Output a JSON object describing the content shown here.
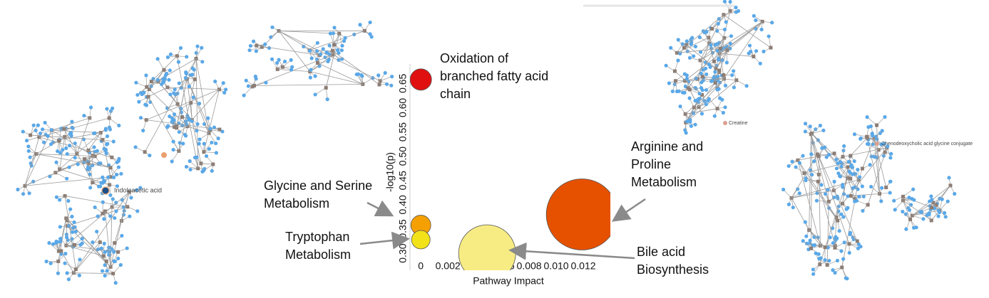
{
  "chart_data": {
    "type": "bubble",
    "x_label": "Pathway Impact",
    "y_label": "-log10(p)",
    "xlim": [
      -0.0008,
      0.014
    ],
    "ylim": [
      0.265,
      0.69
    ],
    "xticks": [
      0,
      0.002,
      0.004,
      0.006,
      0.008,
      {
        "value": 0.01,
        "label": "0.010"
      },
      0.012
    ],
    "yticks": [
      {
        "value": 0.3,
        "label": "0.30"
      },
      0.35,
      {
        "value": 0.4,
        "label": "0.40"
      },
      0.45,
      {
        "value": 0.5,
        "label": "0.50"
      },
      0.55,
      {
        "value": 0.6,
        "label": "0.60"
      },
      0.65
    ],
    "points": [
      {
        "name": "Oxidation of branched fatty acid chain",
        "x": 0,
        "y": 0.658,
        "size": 15,
        "color": "#e01010"
      },
      {
        "name": "Glycine and Serine Metabolism",
        "x": 0,
        "y": 0.358,
        "size": 14,
        "color": "#f5a000"
      },
      {
        "name": "Tryptophan Metabolism",
        "x": 0,
        "y": 0.328,
        "size": 13,
        "color": "#f2e21a"
      },
      {
        "name": "Bile acid Biosynthesis",
        "x": 0.0049,
        "y": 0.3,
        "size": 40,
        "color": "#f7ec84"
      },
      {
        "name": "Arginine and Proline Metabolism",
        "x": 0.0119,
        "y": 0.38,
        "size": 50,
        "color": "#e65100"
      }
    ],
    "annotations": [
      {
        "lines": [
          "Oxidation of",
          "branched fatty acid",
          "chain"
        ]
      },
      {
        "lines": [
          "Arginine and",
          "Proline",
          "Metabolism"
        ]
      },
      {
        "lines": [
          "Glycine and Serine",
          "Metabolism"
        ]
      },
      {
        "lines": [
          "Tryptophan",
          "Metabolism"
        ]
      },
      {
        "lines": [
          "Bile acid",
          "Biosynthesis"
        ]
      }
    ]
  },
  "network_labels": [
    "Indoleacetic acid",
    "Creatine",
    "Chenodeoxycholic acid glycine conjugate"
  ]
}
